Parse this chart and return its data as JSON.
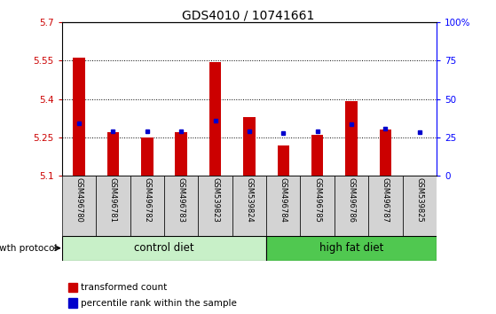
{
  "title": "GDS4010 / 10741661",
  "samples": [
    "GSM496780",
    "GSM496781",
    "GSM496782",
    "GSM496783",
    "GSM539823",
    "GSM539824",
    "GSM496784",
    "GSM496785",
    "GSM496786",
    "GSM496787",
    "GSM539825"
  ],
  "red_values": [
    5.56,
    5.27,
    5.25,
    5.27,
    5.545,
    5.33,
    5.22,
    5.26,
    5.39,
    5.28,
    5.1
  ],
  "blue_values": [
    5.305,
    5.275,
    5.275,
    5.275,
    5.315,
    5.275,
    5.268,
    5.275,
    5.3,
    5.283,
    5.272
  ],
  "y_min": 5.1,
  "y_max": 5.7,
  "y_ticks": [
    5.1,
    5.25,
    5.4,
    5.55,
    5.7
  ],
  "y_tick_labels": [
    "5.1",
    "5.25",
    "5.4",
    "5.55",
    "5.7"
  ],
  "right_y_ticks": [
    0,
    25,
    50,
    75,
    100
  ],
  "right_y_labels": [
    "0",
    "25",
    "50",
    "75",
    "100%"
  ],
  "control_diet_label": "control diet",
  "high_fat_label": "high fat diet",
  "growth_protocol_label": "growth protocol",
  "legend_red": "transformed count",
  "legend_blue": "percentile rank within the sample",
  "red_color": "#cc0000",
  "blue_color": "#0000cc",
  "control_bg": "#c8f0c8",
  "high_fat_bg": "#50c850",
  "sample_bg": "#d3d3d3",
  "bar_base": 5.1,
  "n_control": 6,
  "n_total": 11
}
